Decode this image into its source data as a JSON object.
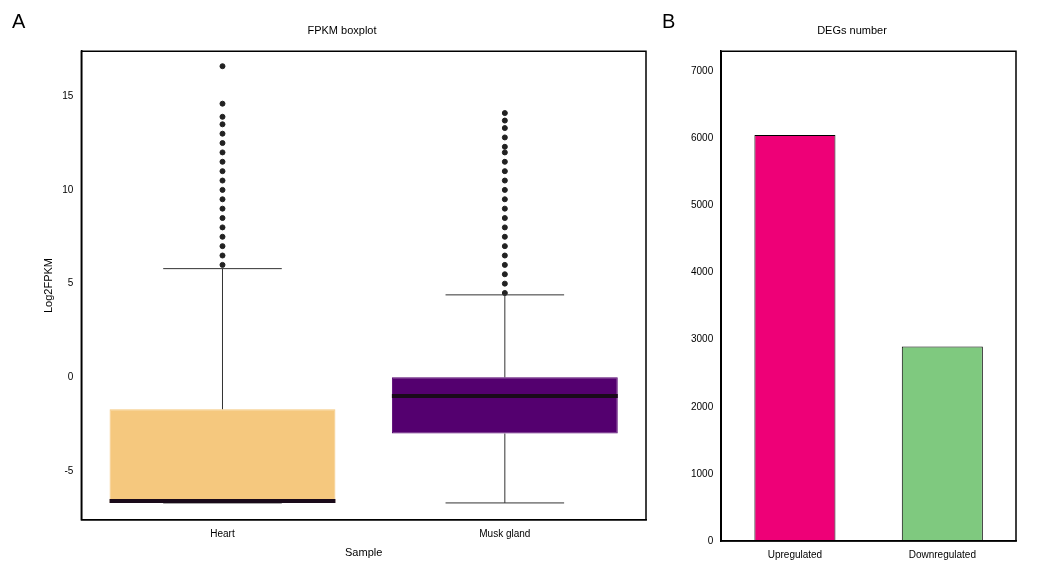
{
  "chart_data": [
    {
      "type": "box",
      "title": "FPKM boxplot",
      "xlabel": "Sample",
      "ylabel": "Log2FPKM",
      "annotations": [
        "A"
      ],
      "categories": [
        "Heart",
        "Musk gland"
      ],
      "colors": [
        "#f5c87e",
        "#54006f"
      ],
      "boxes": [
        {
          "low": -6.7,
          "q1": -6.7,
          "median": -6.6,
          "q3": -1.7,
          "high": 5.8,
          "outliers": [
            6,
            6.5,
            7,
            7.5,
            8,
            8.5,
            9,
            9.5,
            10,
            10.5,
            11,
            11.5,
            12,
            12.5,
            13,
            13.5,
            13.9,
            14.6,
            16.6
          ]
        },
        {
          "low": -6.7,
          "q1": -3,
          "median": -1,
          "q3": 0,
          "high": 4.4,
          "outliers": [
            4.5,
            5,
            5.5,
            6,
            6.5,
            7,
            7.5,
            8,
            8.5,
            9,
            9.5,
            10,
            10.5,
            11,
            11.5,
            12,
            12.3,
            12.8,
            13.3,
            13.7,
            14.1
          ]
        }
      ],
      "ylim": [
        -7.6,
        17.4
      ],
      "yticks": [
        -5,
        0,
        5,
        10,
        15
      ],
      "grid": false,
      "legend": false
    },
    {
      "type": "bar",
      "title": "DEGs number",
      "annotations": [
        "B"
      ],
      "categories": [
        "Upregulated",
        "Downregulated"
      ],
      "values": [
        6050,
        2900
      ],
      "colors": [
        "#ee0077",
        "#7fc97f"
      ],
      "ylim": [
        0,
        7300
      ],
      "yticks": [
        0,
        1000,
        2000,
        3000,
        4000,
        5000,
        6000,
        7000
      ],
      "grid": false,
      "legend": false
    }
  ]
}
